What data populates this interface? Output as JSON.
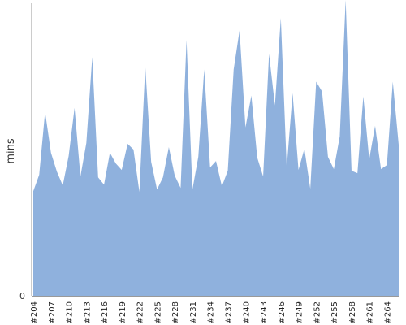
{
  "chart_data": {
    "type": "area",
    "title": "",
    "xlabel": "",
    "ylabel": "mins",
    "x_ticks": [
      "#204",
      "#207",
      "#210",
      "#213",
      "#216",
      "#219",
      "#222",
      "#225",
      "#228",
      "#231",
      "#234",
      "#237",
      "#240",
      "#243",
      "#246",
      "#249",
      "#252",
      "#255",
      "#258",
      "#261",
      "#264"
    ],
    "y_ticks": [
      "0"
    ],
    "ylim": [
      0,
      360
    ],
    "grid": false,
    "color": "#8fb1dd",
    "axis_color": "#999999",
    "series": [
      {
        "values": [
          128,
          148,
          225,
          175,
          152,
          135,
          171,
          230,
          146,
          187,
          292,
          145,
          136,
          175,
          162,
          154,
          186,
          179,
          127,
          281,
          164,
          130,
          145,
          182,
          147,
          132,
          313,
          130,
          170,
          277,
          157,
          165,
          134,
          153,
          277,
          325,
          206,
          245,
          169,
          146,
          296,
          233,
          340,
          157,
          248,
          154,
          180,
          131,
          262,
          250,
          170,
          155,
          195,
          365,
          153,
          150,
          244,
          167,
          208,
          155,
          160,
          262,
          185
        ]
      }
    ]
  }
}
